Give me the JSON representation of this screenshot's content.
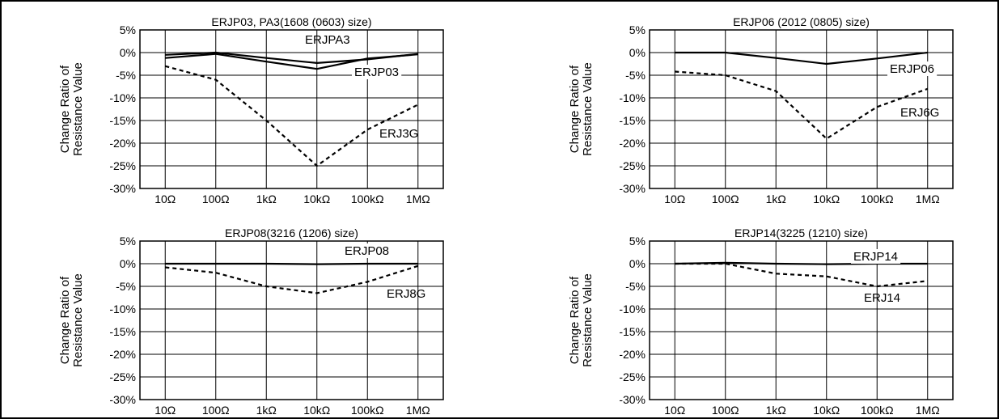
{
  "common": {
    "ylabel_line1": "Change Ratio of",
    "ylabel_line2": "Resistance Value",
    "x_ticks": [
      "10Ω",
      "100Ω",
      "1kΩ",
      "10kΩ",
      "100kΩ",
      "1MΩ"
    ],
    "y_ticks": [
      "5%",
      "0%",
      "-5%",
      "-10%",
      "-15%",
      "-20%",
      "-25%",
      "-30%"
    ]
  },
  "chart_data": [
    {
      "type": "line",
      "title": "ERJP03, PA3(1608 (0603) size)",
      "x_scale": "log",
      "categories": [
        "10Ω",
        "100Ω",
        "1kΩ",
        "10kΩ",
        "100kΩ",
        "1MΩ"
      ],
      "ylim": [
        -30,
        5
      ],
      "grid": true,
      "series": [
        {
          "name": "ERJPA3",
          "style": "solid",
          "x": [
            "10Ω",
            "100Ω",
            "1kΩ",
            "10kΩ",
            "100kΩ",
            "1MΩ"
          ],
          "values": [
            -0.5,
            0,
            -1.2,
            -2.3,
            -1.5,
            -0.3
          ]
        },
        {
          "name": "ERJP03",
          "style": "solid",
          "x": [
            "10Ω",
            "100Ω",
            "1kΩ",
            "10kΩ",
            "100kΩ",
            "1MΩ"
          ],
          "values": [
            -1.2,
            -0.3,
            -2.0,
            -3.6,
            -1.3,
            -0.4
          ]
        },
        {
          "name": "ERJ3G",
          "style": "dashed",
          "x": [
            "10Ω",
            "100Ω",
            "1kΩ",
            "10kΩ",
            "100kΩ",
            "1MΩ"
          ],
          "values": [
            -3,
            -6,
            -15,
            -25,
            -17,
            -11.5
          ]
        }
      ]
    },
    {
      "type": "line",
      "title": "ERJP06 (2012 (0805) size)",
      "x_scale": "log",
      "categories": [
        "10Ω",
        "100Ω",
        "1kΩ",
        "10kΩ",
        "100kΩ",
        "1MΩ"
      ],
      "ylim": [
        -30,
        5
      ],
      "grid": true,
      "series": [
        {
          "name": "ERJP06",
          "style": "solid",
          "x": [
            "10Ω",
            "100Ω",
            "1kΩ",
            "10kΩ",
            "100kΩ",
            "1MΩ"
          ],
          "values": [
            0,
            0,
            -1.2,
            -2.5,
            -1.3,
            0
          ]
        },
        {
          "name": "ERJ6G",
          "style": "dashed",
          "x": [
            "10Ω",
            "100Ω",
            "1kΩ",
            "10kΩ",
            "100kΩ",
            "1MΩ"
          ],
          "values": [
            -4.2,
            -5,
            -8.5,
            -19,
            -12,
            -8
          ]
        }
      ]
    },
    {
      "type": "line",
      "title": "ERJP08(3216 (1206) size)",
      "x_scale": "log",
      "categories": [
        "10Ω",
        "100Ω",
        "1kΩ",
        "10kΩ",
        "100kΩ",
        "1MΩ"
      ],
      "ylim": [
        -30,
        5
      ],
      "grid": true,
      "series": [
        {
          "name": "ERJP08",
          "style": "solid",
          "x": [
            "10Ω",
            "100Ω",
            "1kΩ",
            "10kΩ",
            "100kΩ",
            "1MΩ"
          ],
          "values": [
            0,
            0,
            0,
            -0.1,
            0,
            0
          ]
        },
        {
          "name": "ERJ8G",
          "style": "dashed",
          "x": [
            "10Ω",
            "100Ω",
            "1kΩ",
            "10kΩ",
            "100kΩ",
            "1MΩ"
          ],
          "values": [
            -0.8,
            -2,
            -5,
            -6.5,
            -4,
            -0.5
          ]
        }
      ]
    },
    {
      "type": "line",
      "title": "ERJP14(3225 (1210) size)",
      "x_scale": "log",
      "categories": [
        "10Ω",
        "100Ω",
        "1kΩ",
        "10kΩ",
        "100kΩ",
        "1MΩ"
      ],
      "ylim": [
        -30,
        5
      ],
      "grid": true,
      "series": [
        {
          "name": "ERJP14",
          "style": "solid",
          "x": [
            "10Ω",
            "100Ω",
            "1kΩ",
            "10kΩ",
            "100kΩ",
            "1MΩ"
          ],
          "values": [
            0,
            0.2,
            0,
            -0.1,
            0,
            0
          ]
        },
        {
          "name": "ERJ14",
          "style": "dashed",
          "x": [
            "10Ω",
            "100Ω",
            "1kΩ",
            "10kΩ",
            "100kΩ",
            "1MΩ"
          ],
          "values": [
            0,
            0,
            -2.2,
            -2.8,
            -5,
            -3.8
          ]
        }
      ]
    }
  ]
}
